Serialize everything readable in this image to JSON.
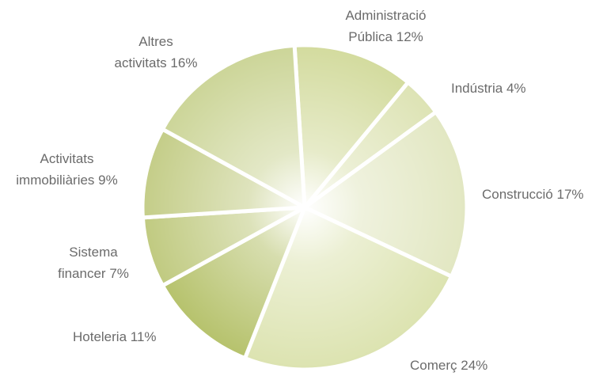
{
  "chart_data": {
    "type": "pie",
    "categories": [
      "Administració Pública",
      "Indústria",
      "Construcció",
      "Comerç",
      "Hoteleria",
      "Sistema financer",
      "Activitats immobiliàries",
      "Altres activitats"
    ],
    "values": [
      12,
      4,
      17,
      24,
      11,
      7,
      9,
      16
    ],
    "value_labels": [
      "12%",
      "4%",
      "17%",
      "24%",
      "11%",
      "7%",
      "9%",
      "16%"
    ],
    "colors": [
      "#d3db9e",
      "#dde3b4",
      "#e2e7c2",
      "#dce3b0",
      "#b6c26c",
      "#c0ca80",
      "#c4cd88",
      "#ccd598"
    ]
  }
}
